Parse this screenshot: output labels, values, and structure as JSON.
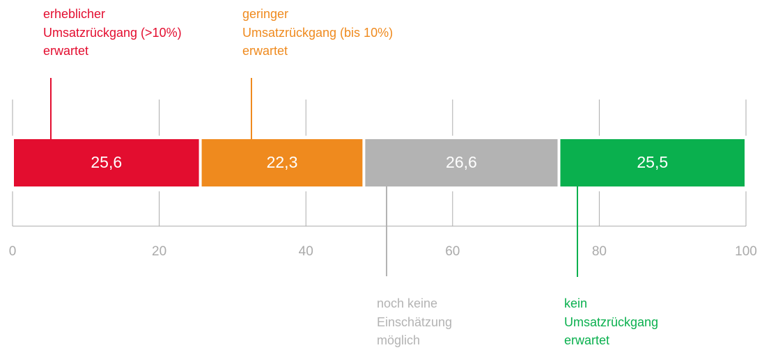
{
  "chart_data": {
    "type": "stacked-bar",
    "series": [
      {
        "name": "erheblicher\nUmsatzrückgang (>10%)\nerwartet",
        "color": "#e30d2f",
        "values": [
          25.6
        ],
        "value_labels": [
          "25,6"
        ]
      },
      {
        "name": "geringer\nUmsatzrückgang (bis 10%)\nerwartet",
        "color": "#ef8a1e",
        "values": [
          22.3
        ],
        "value_labels": [
          "22,3"
        ]
      },
      {
        "name": "noch keine\nEinschätzung\nmöglich",
        "color": "#b3b3b3",
        "values": [
          26.6
        ],
        "value_labels": [
          "26,6"
        ]
      },
      {
        "name": "kein\nUmsatzrückgang\nerwartet",
        "color": "#0ab04e",
        "values": [
          25.5
        ],
        "value_labels": [
          "25,5"
        ]
      }
    ],
    "xlim": [
      0,
      100
    ],
    "xticks": [
      0,
      20,
      40,
      60,
      80,
      100
    ],
    "grid": true
  }
}
